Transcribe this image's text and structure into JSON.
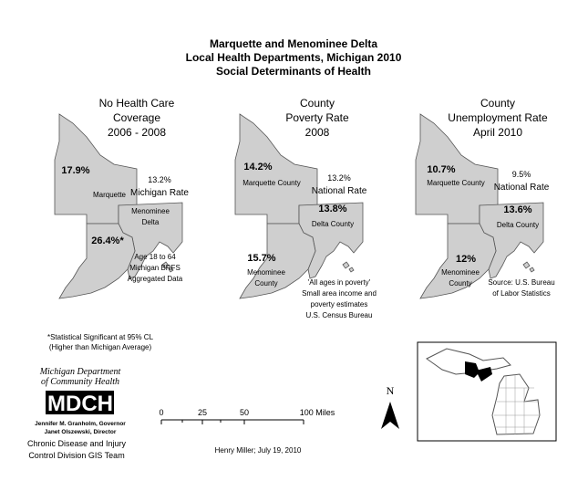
{
  "title": [
    "Marquette and Menominee Delta",
    "Local Health Departments, Michigan 2010",
    "Social Determinants of Health"
  ],
  "panels": [
    {
      "title": [
        "No Health Care",
        "Coverage",
        "2006 - 2008"
      ],
      "regions": [
        {
          "name": [
            "Marquette"
          ],
          "value": "17.9%"
        },
        {
          "name": [
            "Menominee",
            "Delta"
          ],
          "value": "26.4%*"
        }
      ],
      "reference": {
        "value": "13.2%",
        "label": "Michigan Rate"
      },
      "note": [
        "Age 18 to 64",
        "Michigan BRFS",
        "Aggregated Data"
      ]
    },
    {
      "title": [
        "County",
        "Poverty Rate",
        "2008"
      ],
      "regions": [
        {
          "name": [
            "Marquette County"
          ],
          "value": "14.2%"
        },
        {
          "name": [
            "Delta County"
          ],
          "value": "13.8%"
        },
        {
          "name": [
            "Menominee",
            "County"
          ],
          "value": "15.7%"
        }
      ],
      "reference": {
        "value": "13.2%",
        "label": "National Rate"
      },
      "note": [
        "'All ages in poverty'",
        "Small area income and",
        "poverty estimates",
        "U.S. Census Bureau"
      ]
    },
    {
      "title": [
        "County",
        "Unemployment Rate",
        "April 2010"
      ],
      "regions": [
        {
          "name": [
            "Marquette County"
          ],
          "value": "10.7%"
        },
        {
          "name": [
            "Delta County"
          ],
          "value": "13.6%"
        },
        {
          "name": [
            "Menominee",
            "County"
          ],
          "value": "12%"
        }
      ],
      "reference": {
        "value": "9.5%",
        "label": "National Rate"
      },
      "note": [
        "Source: U.S. Bureau",
        "of Labor Statistics"
      ]
    }
  ],
  "footnote": [
    "*Statistical Significant at 95% CL",
    "(Higher than Michigan Average)"
  ],
  "logo": {
    "department": [
      "Michigan Department",
      "of Community Health"
    ],
    "acronym": "MDCH",
    "officials": [
      "Jennifer M. Granholm, Governor",
      "Janet Olszewski, Director"
    ]
  },
  "team": [
    "Chronic Disease and Injury",
    "Control Division GIS Team"
  ],
  "scale": {
    "ticks": [
      "0",
      "25",
      "50",
      "100 Miles"
    ]
  },
  "north": "N",
  "credit": "Henry Miller; July 19, 2010"
}
